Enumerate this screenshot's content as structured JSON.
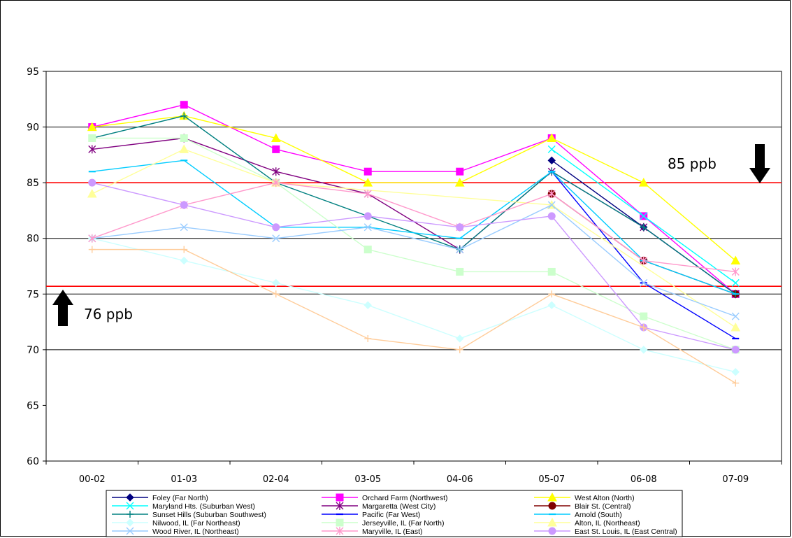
{
  "chart_data": {
    "type": "line",
    "title": "",
    "xlabel": "",
    "ylabel": "",
    "categories": [
      "00-02",
      "01-03",
      "02-04",
      "03-05",
      "04-06",
      "05-07",
      "06-08",
      "07-09"
    ],
    "yticks": [
      60,
      65,
      70,
      75,
      80,
      85,
      90,
      95
    ],
    "ylim": [
      60,
      95
    ],
    "grid": "horizontal at 70, 80, 90",
    "legend_placement": "bottom",
    "reference_lines": [
      {
        "value": 85,
        "label": "85 ppb",
        "color": "#ff0000"
      },
      {
        "value": 75.7,
        "label": "76 ppb",
        "color": "#ff0000"
      }
    ],
    "series": [
      {
        "name": "Foley (Far North)",
        "color": "#000080",
        "marker": "diamond",
        "values": [
          null,
          null,
          null,
          null,
          null,
          87,
          81,
          75
        ]
      },
      {
        "name": "Orchard Farm (Northwest)",
        "color": "#ff00ff",
        "marker": "square",
        "values": [
          90,
          92,
          88,
          86,
          86,
          89,
          82,
          75
        ]
      },
      {
        "name": "West Alton (North)",
        "color": "#ffff00",
        "marker": "triangle",
        "values": [
          90,
          91,
          89,
          85,
          85,
          89,
          85,
          78
        ]
      },
      {
        "name": "Maryland Hts. (Suburban West)",
        "color": "#00ffff",
        "marker": "x",
        "values": [
          null,
          null,
          null,
          null,
          null,
          88,
          82,
          76
        ]
      },
      {
        "name": "Margaretta (West City)",
        "color": "#800080",
        "marker": "star",
        "values": [
          88,
          89,
          86,
          84,
          79,
          86,
          81,
          75
        ]
      },
      {
        "name": "Blair St. (Central)",
        "color": "#800000",
        "marker": "circle",
        "values": [
          null,
          null,
          null,
          null,
          null,
          84,
          78,
          75
        ]
      },
      {
        "name": "Sunset Hills (Suburban Southwest)",
        "color": "#008080",
        "marker": "plus",
        "values": [
          89,
          91,
          85,
          82,
          79,
          86,
          81,
          75
        ]
      },
      {
        "name": "Pacific (Far West)",
        "color": "#0000ff",
        "marker": "dash",
        "values": [
          null,
          null,
          null,
          null,
          null,
          86,
          76,
          71
        ]
      },
      {
        "name": "Arnold (South)",
        "color": "#00ccff",
        "marker": "dash",
        "values": [
          86,
          87,
          81,
          81,
          80,
          86,
          78,
          75
        ]
      },
      {
        "name": "Nilwood, IL (Far Northeast)",
        "color": "#ccffff",
        "marker": "diamond",
        "values": [
          80,
          78,
          76,
          74,
          71,
          74,
          70,
          68
        ]
      },
      {
        "name": "Jerseyville, IL (Far North)",
        "color": "#ccffcc",
        "marker": "square",
        "values": [
          89,
          89,
          85,
          79,
          77,
          77,
          73,
          70
        ]
      },
      {
        "name": "Alton, IL (Northeast)",
        "color": "#ffff99",
        "marker": "triangle",
        "values": [
          84,
          88,
          85,
          null,
          null,
          83,
          null,
          72
        ]
      },
      {
        "name": "Wood River, IL (Northeast)",
        "color": "#99ccff",
        "marker": "x",
        "values": [
          80,
          81,
          80,
          81,
          79,
          83,
          76,
          73
        ]
      },
      {
        "name": "Maryville, IL (East)",
        "color": "#ff99cc",
        "marker": "star",
        "values": [
          80,
          83,
          85,
          84,
          81,
          84,
          78,
          77
        ]
      },
      {
        "name": "East St. Louis, IL (East Central)",
        "color": "#cc99ff",
        "marker": "circle",
        "values": [
          85,
          83,
          81,
          82,
          81,
          82,
          72,
          70
        ]
      },
      {
        "name": "",
        "color": "#ffcc99",
        "marker": "plus",
        "values": [
          79,
          79,
          75,
          71,
          70,
          75,
          72,
          67
        ]
      }
    ]
  }
}
